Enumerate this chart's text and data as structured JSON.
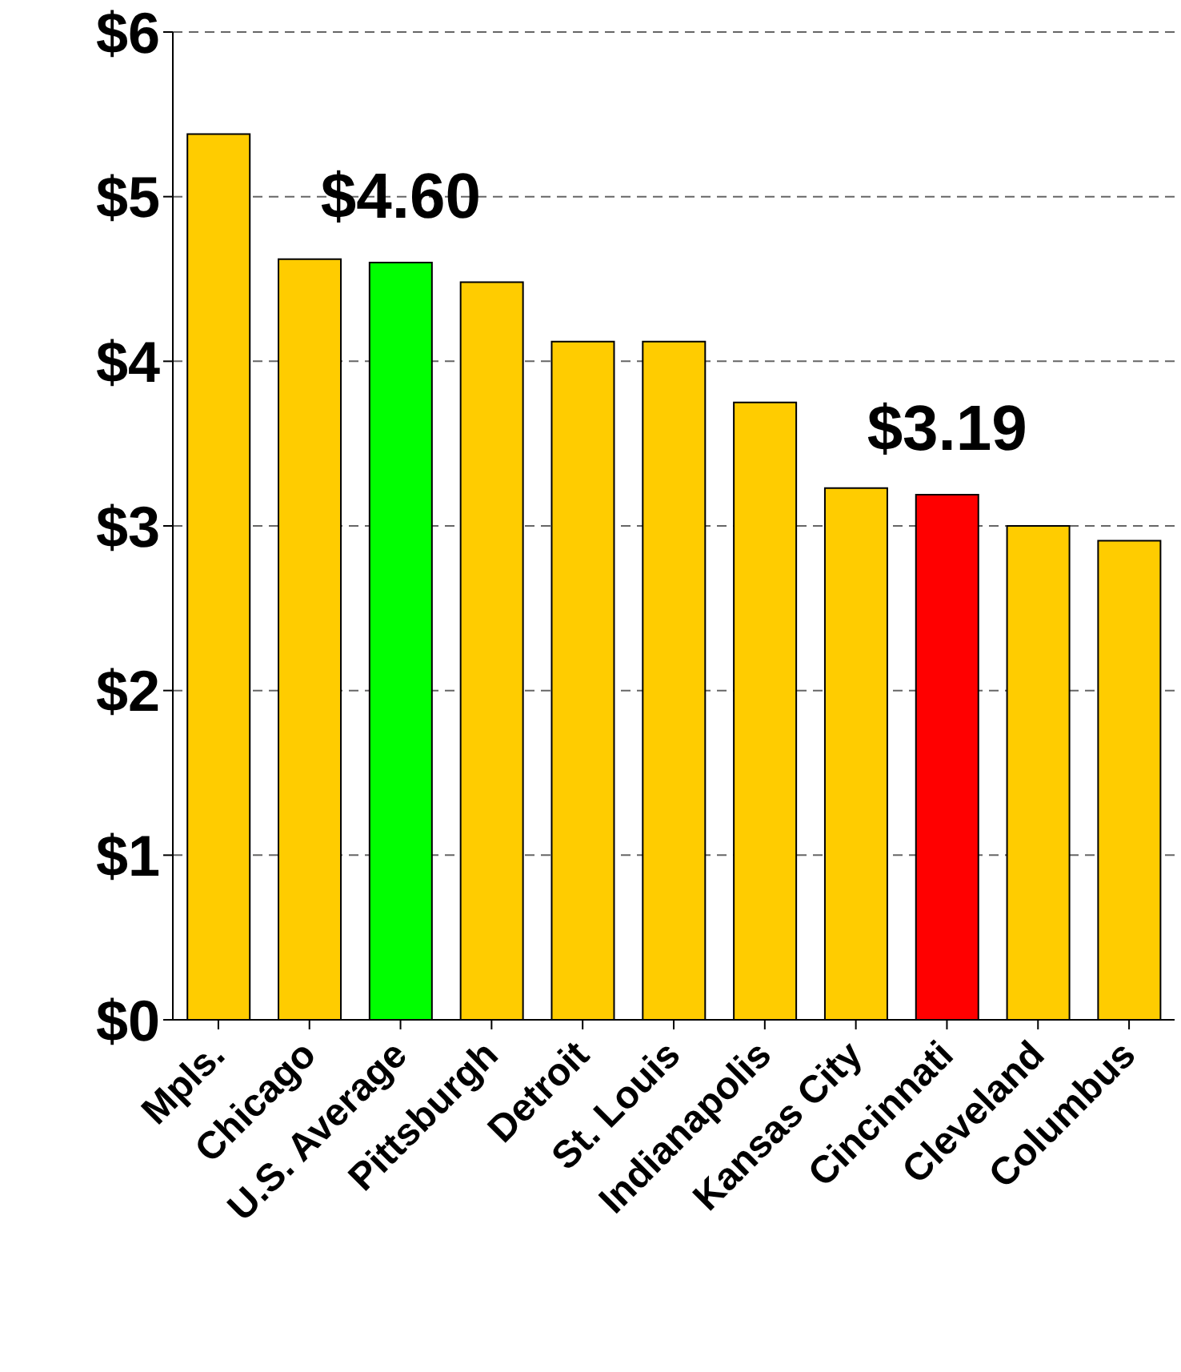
{
  "chart_data": {
    "type": "bar",
    "categories": [
      "Mpls.",
      "Chicago",
      "U.S. Average",
      "Pittsburgh",
      "Detroit",
      "St. Louis",
      "Indianapolis",
      "Kansas City",
      "Cincinnati",
      "Cleveland",
      "Columbus"
    ],
    "values": [
      5.38,
      4.62,
      4.6,
      4.48,
      4.12,
      4.12,
      3.75,
      3.23,
      3.19,
      3.0,
      2.91
    ],
    "colors": [
      "#ffcc00",
      "#ffcc00",
      "#00ff00",
      "#ffcc00",
      "#ffcc00",
      "#ffcc00",
      "#ffcc00",
      "#ffcc00",
      "#ff0000",
      "#ffcc00",
      "#ffcc00"
    ],
    "value_labels": [
      null,
      null,
      "$4.60",
      null,
      null,
      null,
      null,
      null,
      "$3.19",
      null,
      null
    ],
    "ylim": [
      0,
      6
    ],
    "yticks": [
      {
        "value": 0,
        "label": "$0"
      },
      {
        "value": 1,
        "label": "$1"
      },
      {
        "value": 2,
        "label": "$2"
      },
      {
        "value": 3,
        "label": "$3"
      },
      {
        "value": 4,
        "label": "$4"
      },
      {
        "value": 5,
        "label": "$5"
      },
      {
        "value": 6,
        "label": "$6"
      }
    ],
    "grid": "y",
    "line_style": "dashed"
  }
}
